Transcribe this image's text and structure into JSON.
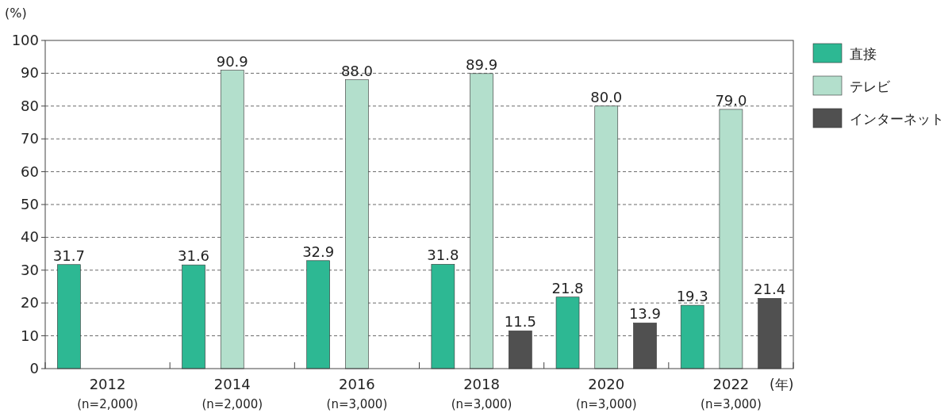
{
  "chart_data": {
    "type": "bar",
    "ylabel": "(%)",
    "xlabel": "(年)",
    "categories": [
      "2012\n(n=2,000)",
      "2014\n(n=2,000)",
      "2016\n(n=3,000)",
      "2018\n(n=3,000)",
      "2020\n(n=3,000)",
      "2022\n(n=3,000)"
    ],
    "series": [
      {
        "name": "直接",
        "color": "#2db893",
        "values": [
          31.7,
          31.6,
          32.9,
          31.8,
          21.8,
          19.3
        ],
        "value_labels": [
          "31.7",
          "31.6",
          "32.9",
          "31.8",
          "21.8",
          "19.3"
        ]
      },
      {
        "name": "テレビ",
        "color": "#b3dfcc",
        "values": [
          null,
          90.9,
          88.0,
          89.9,
          80.0,
          79.0
        ],
        "value_labels": [
          null,
          "90.9",
          "88.0",
          "89.9",
          "80.0",
          "79.0"
        ]
      },
      {
        "name": "インターネット",
        "color": "#505050",
        "values": [
          null,
          null,
          null,
          11.5,
          13.9,
          21.4
        ],
        "value_labels": [
          null,
          null,
          null,
          "11.5",
          "13.9",
          "21.4"
        ]
      }
    ],
    "ylim": [
      0,
      100
    ],
    "yticks": [
      0,
      10,
      20,
      30,
      40,
      50,
      60,
      70,
      80,
      90,
      100
    ],
    "grid": "y",
    "legend": "right"
  }
}
